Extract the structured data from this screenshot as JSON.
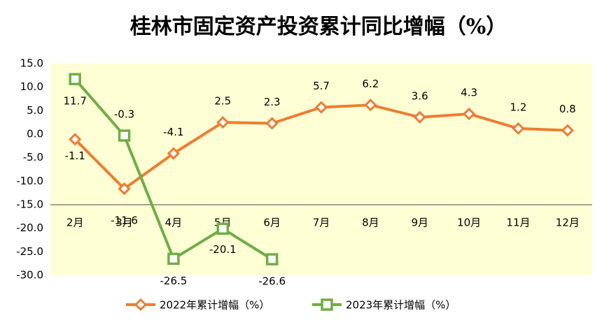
{
  "chart_data": {
    "type": "line",
    "title": "桂林市固定资产投资累计同比增幅（%）",
    "categories": [
      "2月",
      "3月",
      "4月",
      "5月",
      "6月",
      "7月",
      "8月",
      "9月",
      "10月",
      "11月",
      "12月"
    ],
    "series": [
      {
        "name": "2022年累计增幅（%）",
        "color": "#ed7d31",
        "marker": "diamond",
        "values": [
          -1.1,
          -11.6,
          -4.1,
          2.5,
          2.3,
          5.7,
          6.2,
          3.6,
          4.3,
          1.2,
          0.8
        ]
      },
      {
        "name": "2023年累计增幅（%）",
        "color": "#70ad47",
        "marker": "square",
        "values": [
          11.7,
          -0.3,
          -26.5,
          -20.1,
          -26.6,
          null,
          null,
          null,
          null,
          null,
          null
        ]
      }
    ],
    "ylim": [
      -30,
      15
    ],
    "yticks": [
      {
        "value": -30,
        "label": "-30.0"
      },
      {
        "value": -25,
        "label": "-25.0"
      },
      {
        "value": -20,
        "label": "-20.0"
      },
      {
        "value": -15,
        "label": "-15.0"
      },
      {
        "value": -10,
        "label": "-10.0"
      },
      {
        "value": -5,
        "label": "-5.0"
      },
      {
        "value": 0,
        "label": "0.0"
      },
      {
        "value": 5,
        "label": "5.0"
      },
      {
        "value": 10,
        "label": "10.0"
      },
      {
        "value": 15,
        "label": "15.0"
      }
    ],
    "xaxis_crosses": -15,
    "plot_background": "#ffffd5",
    "legend": "bottom",
    "grid": false
  }
}
